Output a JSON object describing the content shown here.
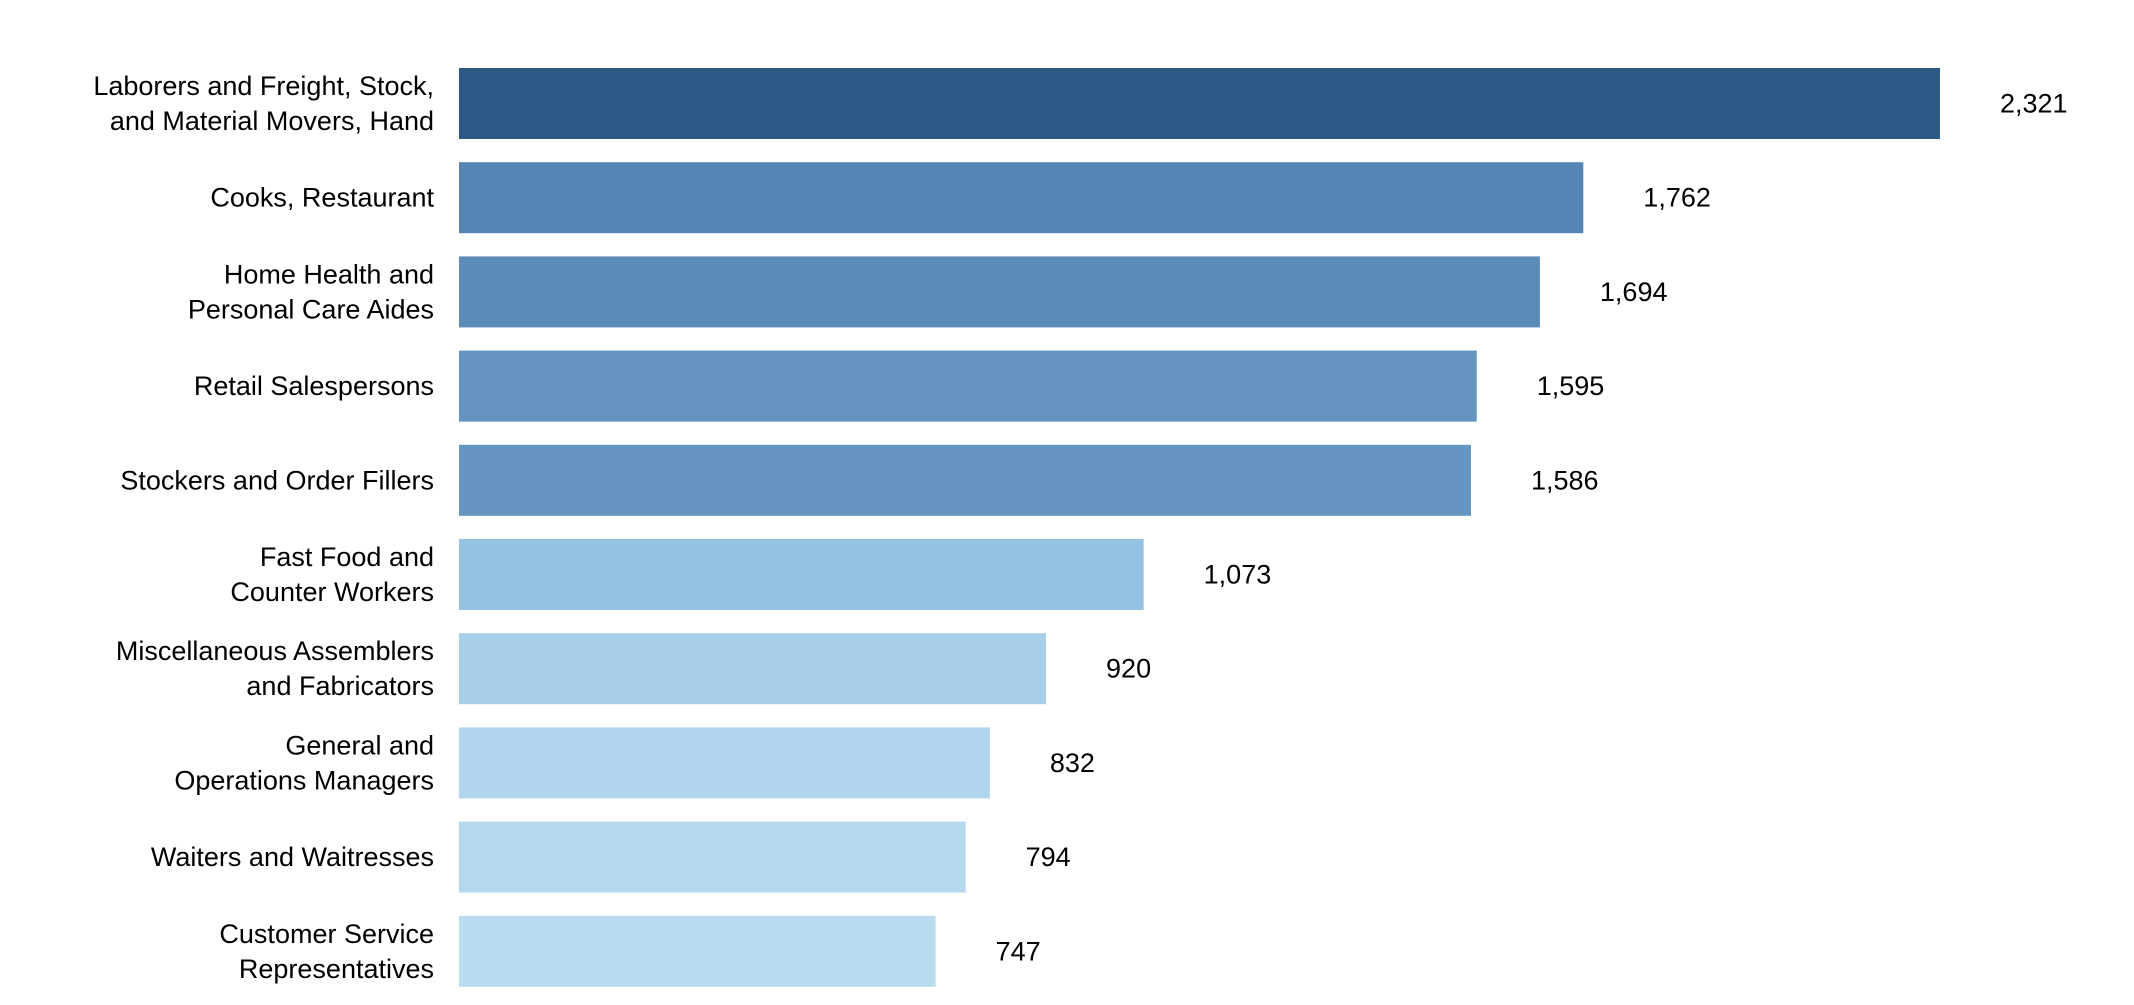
{
  "chart_data": {
    "type": "bar",
    "orientation": "horizontal",
    "categories": [
      [
        "Laborers and Freight, Stock,",
        "and Material Movers, Hand"
      ],
      [
        "Cooks, Restaurant"
      ],
      [
        "Home Health and",
        "Personal Care Aides"
      ],
      [
        "Retail Salespersons"
      ],
      [
        "Stockers and Order Fillers"
      ],
      [
        "Fast Food and",
        "Counter Workers"
      ],
      [
        "Miscellaneous Assemblers",
        "and Fabricators"
      ],
      [
        "General and",
        "Operations Managers"
      ],
      [
        "Waiters and Waitresses"
      ],
      [
        "Customer Service",
        "Representatives"
      ]
    ],
    "values": [
      2321,
      1762,
      1694,
      1595,
      1586,
      1073,
      920,
      832,
      794,
      747
    ],
    "value_labels": [
      "2,321",
      "1,762",
      "1,694",
      "1,595",
      "1,586",
      "1,073",
      "920",
      "832",
      "794",
      "747"
    ],
    "bar_colors": [
      "#2d5986",
      "#5585b5",
      "#5b8bb7",
      "#6494bf",
      "#6595c0",
      "#94c2e3",
      "#a8cfea",
      "#b1d5ed",
      "#b5d8ef",
      "#badcf0"
    ],
    "xlim": [
      0,
      2321
    ],
    "grid": false,
    "axes_visible": false,
    "title": "",
    "xlabel": "",
    "ylabel": ""
  }
}
